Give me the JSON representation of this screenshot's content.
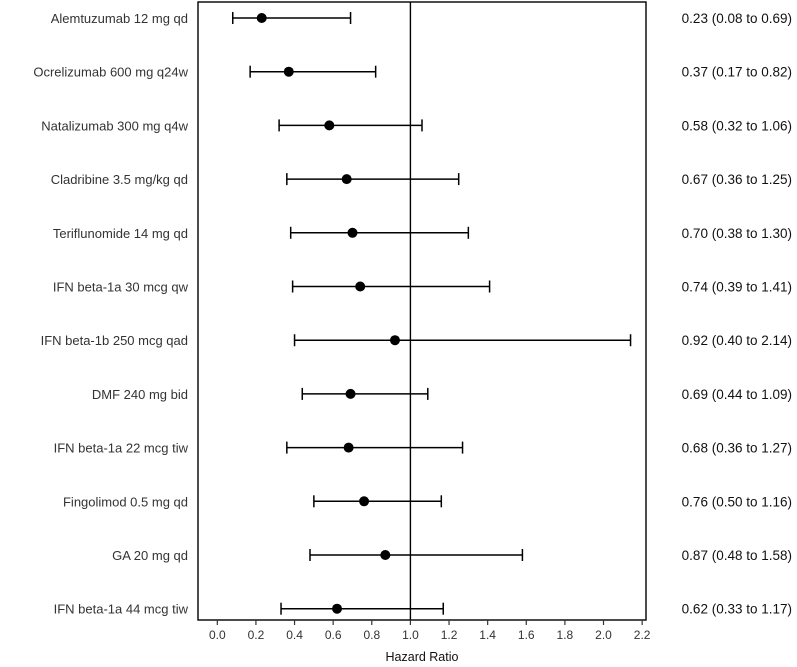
{
  "chart_data": {
    "type": "forest",
    "xlabel": "Hazard Ratio",
    "xlim": [
      -0.1,
      2.22
    ],
    "xticks": [
      "0.0",
      "0.2",
      "0.4",
      "0.6",
      "0.8",
      "1.0",
      "1.2",
      "1.4",
      "1.6",
      "1.8",
      "2.0",
      "2.2"
    ],
    "reference_line": 1.0,
    "rows": [
      {
        "label": "Alemtuzumab 12 mg qd",
        "hr": 0.23,
        "lo": 0.08,
        "hi": 0.69,
        "text": "0.23 (0.08 to 0.69)"
      },
      {
        "label": "Ocrelizumab 600 mg q24w",
        "hr": 0.37,
        "lo": 0.17,
        "hi": 0.82,
        "text": "0.37 (0.17 to 0.82)"
      },
      {
        "label": "Natalizumab 300 mg q4w",
        "hr": 0.58,
        "lo": 0.32,
        "hi": 1.06,
        "text": "0.58 (0.32 to 1.06)"
      },
      {
        "label": "Cladribine 3.5 mg/kg qd",
        "hr": 0.67,
        "lo": 0.36,
        "hi": 1.25,
        "text": "0.67 (0.36 to 1.25)"
      },
      {
        "label": "Teriflunomide 14 mg qd",
        "hr": 0.7,
        "lo": 0.38,
        "hi": 1.3,
        "text": "0.70 (0.38 to 1.30)"
      },
      {
        "label": "IFN beta-1a 30 mcg qw",
        "hr": 0.74,
        "lo": 0.39,
        "hi": 1.41,
        "text": "0.74 (0.39 to 1.41)"
      },
      {
        "label": "IFN beta-1b 250 mcg qad",
        "hr": 0.92,
        "lo": 0.4,
        "hi": 2.14,
        "text": "0.92 (0.40 to 2.14)"
      },
      {
        "label": "DMF 240 mg bid",
        "hr": 0.69,
        "lo": 0.44,
        "hi": 1.09,
        "text": "0.69 (0.44 to 1.09)"
      },
      {
        "label": "IFN beta-1a 22 mcg tiw",
        "hr": 0.68,
        "lo": 0.36,
        "hi": 1.27,
        "text": "0.68 (0.36 to 1.27)"
      },
      {
        "label": "Fingolimod 0.5 mg qd",
        "hr": 0.76,
        "lo": 0.5,
        "hi": 1.16,
        "text": "0.76 (0.50 to 1.16)"
      },
      {
        "label": "GA 20 mg qd",
        "hr": 0.87,
        "lo": 0.48,
        "hi": 1.58,
        "text": "0.87 (0.48 to 1.58)"
      },
      {
        "label": "IFN beta-1a 44 mcg tiw",
        "hr": 0.62,
        "lo": 0.33,
        "hi": 1.17,
        "text": "0.62 (0.33 to 1.17)"
      }
    ]
  }
}
